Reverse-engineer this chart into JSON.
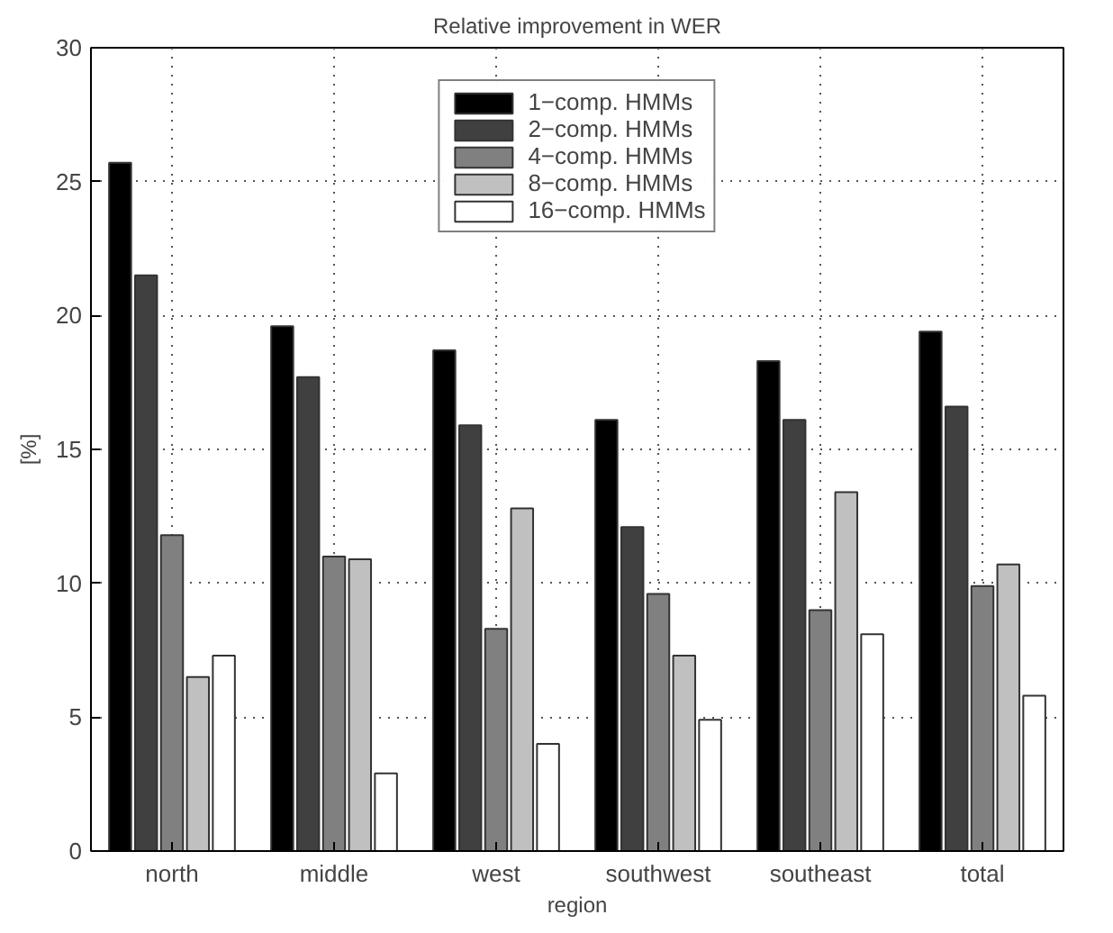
{
  "chart_data": {
    "type": "bar",
    "title": "Relative improvement in WER",
    "xlabel": "region",
    "ylabel": "[%]",
    "categories": [
      "north",
      "middle",
      "west",
      "southwest",
      "southeast",
      "total"
    ],
    "series": [
      {
        "name": "1−comp. HMMs",
        "color": "#000000",
        "values": [
          25.7,
          19.6,
          18.7,
          16.1,
          18.3,
          19.4
        ]
      },
      {
        "name": "2−comp. HMMs",
        "color": "#404040",
        "values": [
          21.5,
          17.7,
          15.9,
          12.1,
          16.1,
          16.6
        ]
      },
      {
        "name": "4−comp. HMMs",
        "color": "#808080",
        "values": [
          11.8,
          11.0,
          8.3,
          9.6,
          9.0,
          9.9
        ]
      },
      {
        "name": "8−comp. HMMs",
        "color": "#c0c0c0",
        "values": [
          6.5,
          10.9,
          12.8,
          7.3,
          13.4,
          10.7
        ]
      },
      {
        "name": "16−comp. HMMs",
        "color": "#ffffff",
        "values": [
          7.3,
          2.9,
          4.0,
          4.9,
          8.1,
          5.8
        ]
      }
    ],
    "ylim": [
      0,
      30
    ],
    "yticks": [
      0,
      5,
      10,
      15,
      20,
      25,
      30
    ],
    "grid": true,
    "legend": "top"
  }
}
